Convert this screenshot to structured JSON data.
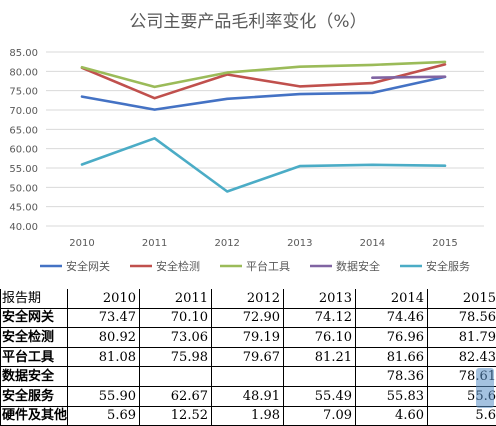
{
  "chart_data": {
    "type": "line",
    "title": "公司主要产品毛利率变化（%）",
    "x": [
      "2010",
      "2011",
      "2012",
      "2013",
      "2014",
      "2015"
    ],
    "ylim": [
      40,
      85
    ],
    "yticks": [
      "40.00",
      "45.00",
      "50.00",
      "55.00",
      "60.00",
      "65.00",
      "70.00",
      "75.00",
      "80.00",
      "85.00"
    ],
    "grid": true,
    "legend_position": "bottom",
    "series": [
      {
        "name": "安全网关",
        "color": "#4472c4",
        "values": [
          73.47,
          70.1,
          72.9,
          74.12,
          74.46,
          78.56
        ]
      },
      {
        "name": "安全检测",
        "color": "#c0504d",
        "values": [
          80.92,
          73.06,
          79.19,
          76.1,
          76.96,
          81.79
        ]
      },
      {
        "name": "平台工具",
        "color": "#9bbb59",
        "values": [
          81.08,
          75.98,
          79.67,
          81.21,
          81.66,
          82.43
        ]
      },
      {
        "name": "数据安全",
        "color": "#8064a2",
        "values": [
          null,
          null,
          null,
          null,
          78.36,
          78.61
        ]
      },
      {
        "name": "安全服务",
        "color": "#4bacc6",
        "values": [
          55.9,
          62.67,
          48.91,
          55.49,
          55.83,
          55.6
        ]
      }
    ]
  },
  "table": {
    "header": [
      "报告期",
      "2010",
      "2011",
      "2012",
      "2013",
      "2014",
      "2015"
    ],
    "rows": [
      [
        "安全网关",
        "73.47",
        "70.10",
        "72.90",
        "74.12",
        "74.46",
        "78.56"
      ],
      [
        "安全检测",
        "80.92",
        "73.06",
        "79.19",
        "76.10",
        "76.96",
        "81.79"
      ],
      [
        "平台工具",
        "81.08",
        "75.98",
        "79.67",
        "81.21",
        "81.66",
        "82.43"
      ],
      [
        "数据安全",
        "",
        "",
        "",
        "",
        "78.36",
        "78.61"
      ],
      [
        "安全服务",
        "55.90",
        "62.67",
        "48.91",
        "55.49",
        "55.83",
        "55.6"
      ],
      [
        "硬件及其他",
        "5.69",
        "12.52",
        "1.98",
        "7.09",
        "4.60",
        "5.6"
      ]
    ]
  }
}
